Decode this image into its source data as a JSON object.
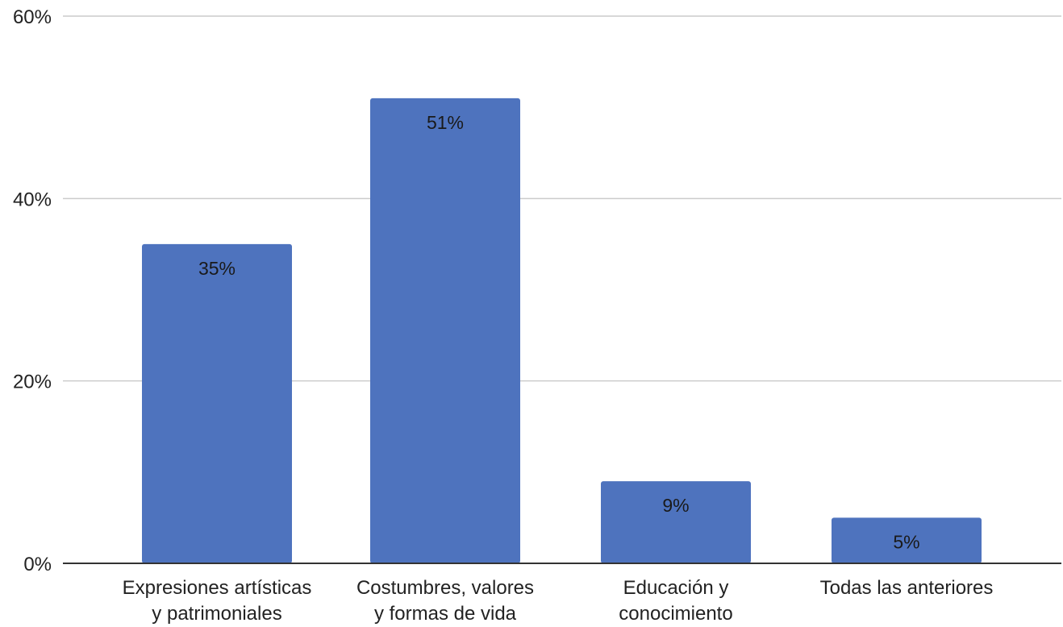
{
  "chart_data": {
    "type": "bar",
    "categories": [
      [
        "Expresiones artísticas",
        "y patrimoniales"
      ],
      [
        "Costumbres, valores",
        "y formas de vida"
      ],
      [
        "Educación y",
        "conocimiento"
      ],
      [
        "Todas las anteriores"
      ]
    ],
    "values": [
      35,
      51,
      9,
      5
    ],
    "data_labels": [
      "35%",
      "51%",
      "9%",
      "5%"
    ],
    "ylim": [
      0,
      60
    ],
    "yticks": [
      0,
      20,
      40,
      60
    ],
    "ytick_labels": [
      "0%",
      "20%",
      "40%",
      "60%"
    ],
    "title": "",
    "xlabel": "",
    "ylabel": "",
    "grid": true,
    "legend": "none",
    "colors": {
      "bar": "#4e73be",
      "grid": "#cccccc",
      "axis": "#333333"
    }
  }
}
